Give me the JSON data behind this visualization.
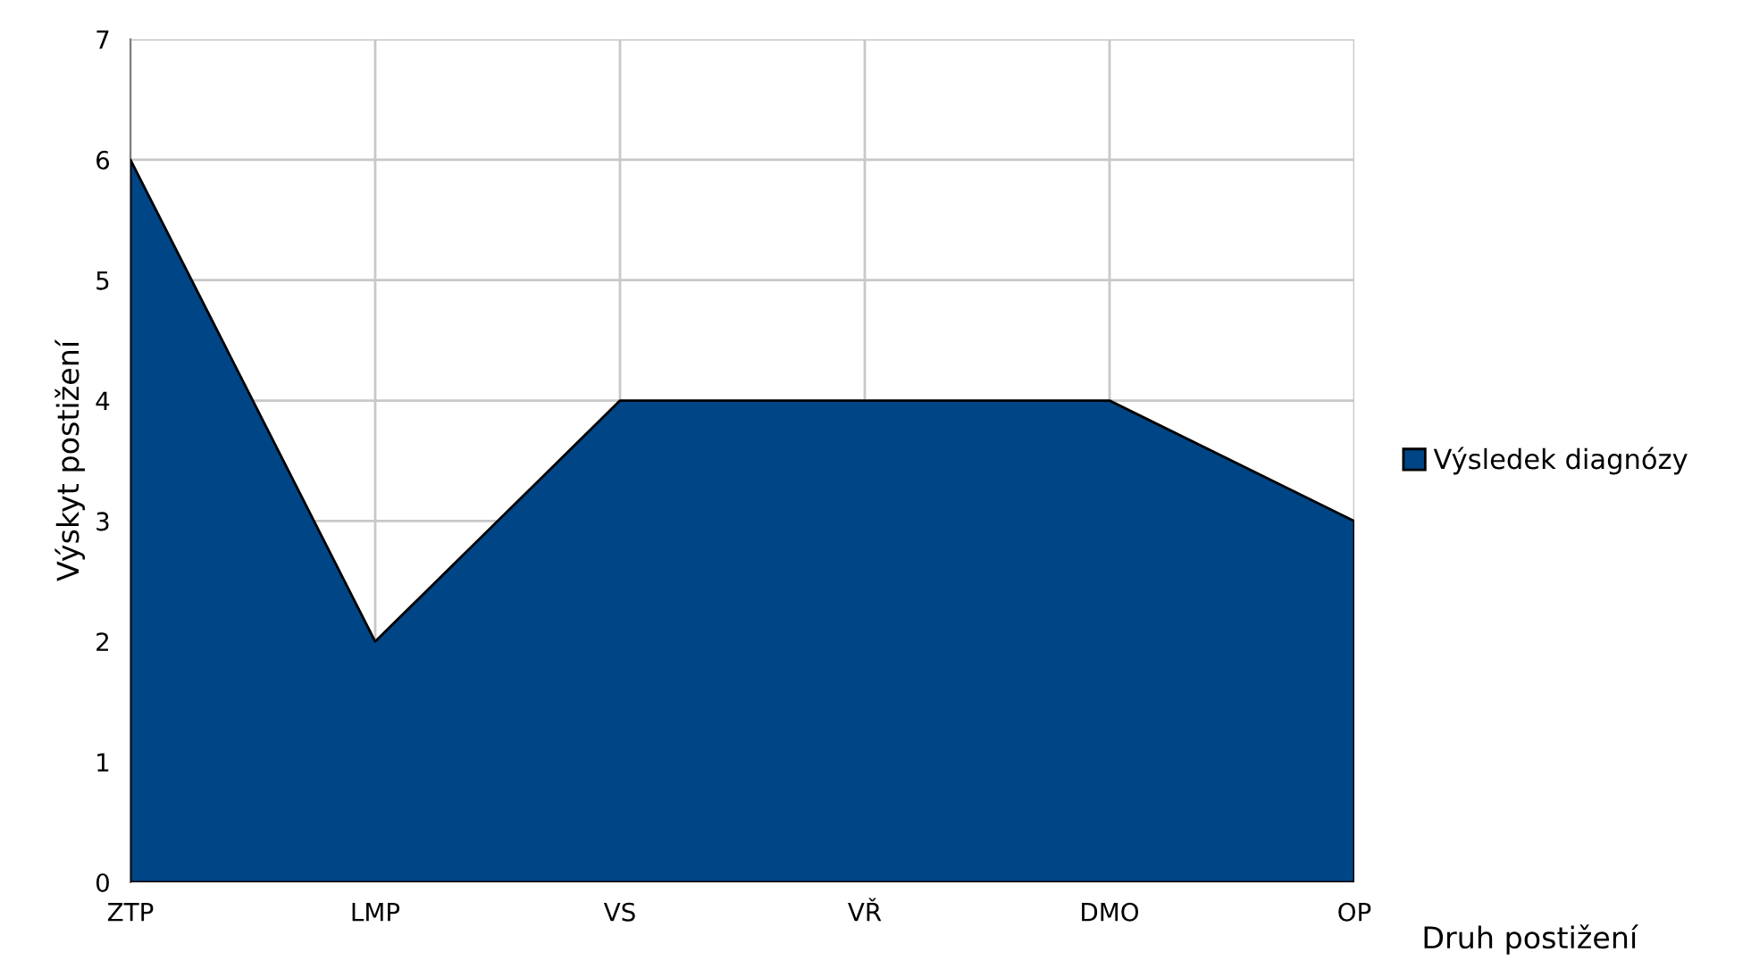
{
  "chart_data": {
    "type": "area",
    "xlabel": "Druh postižení",
    "ylabel": "Výskyt postižení",
    "categories": [
      "ZTP",
      "LMP",
      "VS",
      "VŘ",
      "DMO",
      "OP"
    ],
    "series": [
      {
        "name": "Výsledek diagnózy",
        "color": "#004586",
        "values": [
          6,
          2,
          4,
          4,
          4,
          3
        ]
      }
    ],
    "ylim": [
      0,
      7
    ],
    "yticks": [
      0,
      1,
      2,
      3,
      4,
      5,
      6,
      7
    ],
    "grid": true,
    "legend": "right"
  }
}
